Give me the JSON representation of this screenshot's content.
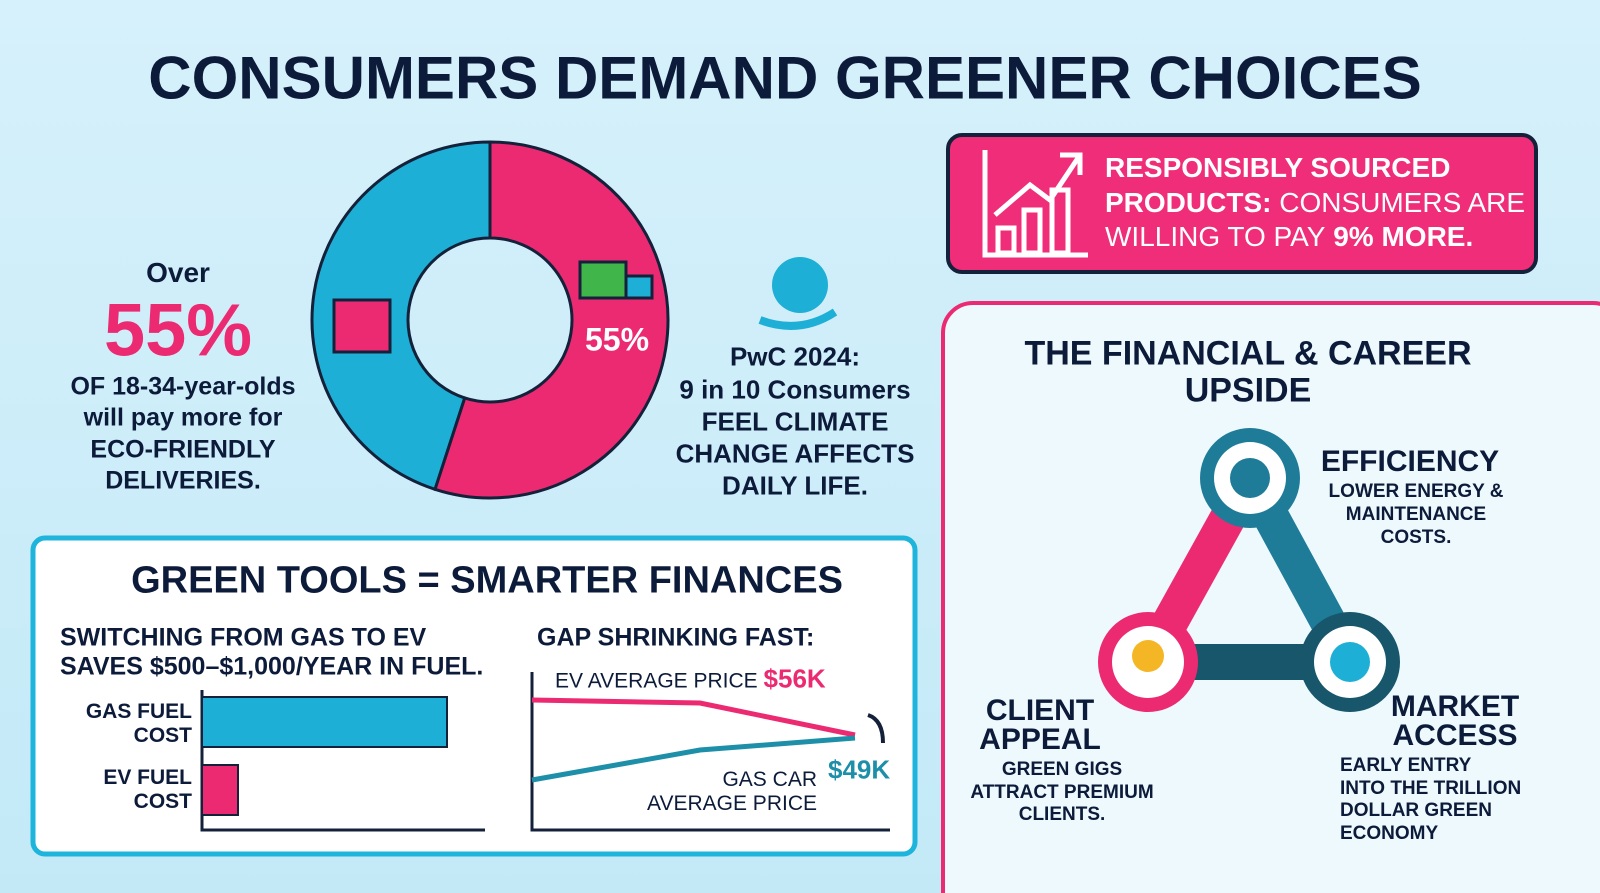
{
  "title": "CONSUMERS DEMAND GREENER CHOICES",
  "youth_stat": {
    "lead": "Over",
    "figure": "55%",
    "lines": [
      "OF 18-34-year-olds",
      "will pay more for",
      "ECO-FRIENDLY",
      "DELIVERIES."
    ]
  },
  "donut": {
    "value": 55,
    "label": "55%",
    "colors": [
      "#ec2a72",
      "#1eafd6"
    ]
  },
  "pwc": {
    "lines": [
      "PwC 2024:",
      "9 in 10 Consumers",
      "FEEL CLIMATE",
      "CHANGE AFFECTS",
      "DAILY LIFE."
    ]
  },
  "sourcing_banner": {
    "parts": [
      "RESPONSIBLY SOURCED",
      "PRODUCTS:",
      "CONSUMERS ARE",
      "WILLING TO PAY",
      "9% MORE."
    ]
  },
  "green_tools": {
    "title": "GREEN TOOLS = SMARTER FINANCES",
    "fuel": {
      "lines": [
        "SWITCHING FROM GAS TO EV",
        "SAVES $500–$1,000/YEAR IN FUEL."
      ],
      "bars": [
        {
          "label_lines": [
            "GAS FUEL",
            "COST"
          ]
        },
        {
          "label_lines": [
            "EV FUEL",
            "COST"
          ]
        }
      ]
    },
    "price_gap": {
      "title": "GAP SHRINKING FAST:",
      "ev_label": "EV AVERAGE PRICE",
      "ev_price": "$56K",
      "gas_label_lines": [
        "GAS CAR",
        "AVERAGE PRICE"
      ],
      "gas_price": "$49K"
    }
  },
  "upside": {
    "title_lines": [
      "THE FINANCIAL & CAREER",
      "UPSIDE"
    ],
    "items": [
      {
        "title_lines": [
          "EFFICIENCY"
        ],
        "text_lines": [
          "LOWER ENERGY &",
          "MAINTENANCE",
          "COSTS."
        ]
      },
      {
        "title_lines": [
          "CLIENT",
          "APPEAL"
        ],
        "text_lines": [
          "GREEN GIGS",
          "ATTRACT PREMIUM",
          "CLIENTS."
        ]
      },
      {
        "title_lines": [
          "MARKET",
          "ACCESS"
        ],
        "text_lines": [
          "EARLY ENTRY",
          "INTO THE TRILLION",
          "DOLLAR GREEN",
          "ECONOMY"
        ]
      }
    ]
  }
}
